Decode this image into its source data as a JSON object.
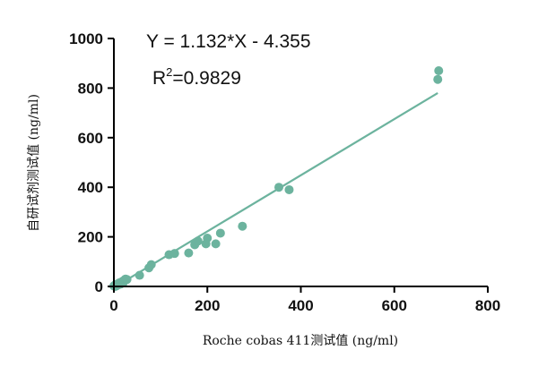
{
  "chart_data": {
    "type": "scatter",
    "xlabel": "Roche cobas 411测试值 (ng/ml)",
    "ylabel": "自研试剂测试值 (ng/ml)",
    "xlim": [
      0,
      800
    ],
    "ylim": [
      0,
      1000
    ],
    "xticks": [
      "0",
      "200",
      "400",
      "600",
      "800"
    ],
    "yticks": [
      "0",
      "200",
      "400",
      "600",
      "800",
      "1000"
    ],
    "grid": false,
    "colors": {
      "points": "#6cb39e",
      "line": "#6cb39e",
      "axis": "#000000"
    },
    "annotations": {
      "equation": "Y = 1.132*X - 4.355",
      "r2_prefix": "R",
      "r2_sup": "2",
      "r2_value": "=0.9829"
    },
    "fit_line": {
      "slope": 1.132,
      "intercept": -4.355,
      "x_range": [
        5,
        693
      ]
    },
    "points": [
      {
        "x": 0,
        "y": 2
      },
      {
        "x": 2,
        "y": 5
      },
      {
        "x": 3,
        "y": 0
      },
      {
        "x": 4,
        "y": 8
      },
      {
        "x": 6,
        "y": 3
      },
      {
        "x": 8,
        "y": 10
      },
      {
        "x": 10,
        "y": 7
      },
      {
        "x": 12,
        "y": 15
      },
      {
        "x": 15,
        "y": 10
      },
      {
        "x": 18,
        "y": 20
      },
      {
        "x": 20,
        "y": 15
      },
      {
        "x": 22,
        "y": 25
      },
      {
        "x": 25,
        "y": 30
      },
      {
        "x": 28,
        "y": 28
      },
      {
        "x": 55,
        "y": 45
      },
      {
        "x": 75,
        "y": 75
      },
      {
        "x": 80,
        "y": 88
      },
      {
        "x": 118,
        "y": 128
      },
      {
        "x": 130,
        "y": 133
      },
      {
        "x": 160,
        "y": 135
      },
      {
        "x": 173,
        "y": 168
      },
      {
        "x": 180,
        "y": 183
      },
      {
        "x": 197,
        "y": 172
      },
      {
        "x": 200,
        "y": 195
      },
      {
        "x": 218,
        "y": 172
      },
      {
        "x": 228,
        "y": 215
      },
      {
        "x": 275,
        "y": 243
      },
      {
        "x": 353,
        "y": 400
      },
      {
        "x": 375,
        "y": 390
      },
      {
        "x": 693,
        "y": 835
      },
      {
        "x": 695,
        "y": 870
      }
    ]
  }
}
